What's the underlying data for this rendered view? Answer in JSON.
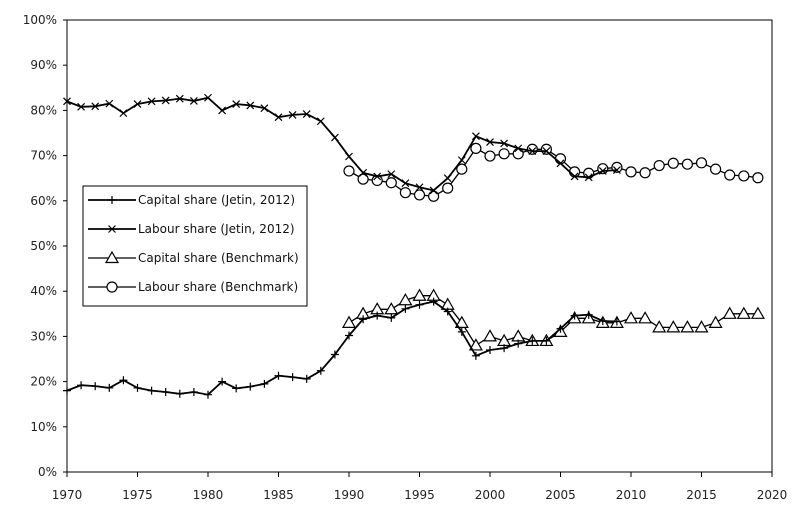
{
  "chart_data": {
    "type": "line",
    "xlim": [
      1970,
      2020
    ],
    "ylim": [
      0,
      100
    ],
    "x_ticks": [
      "1970",
      "1975",
      "1980",
      "1985",
      "1990",
      "1995",
      "2000",
      "2005",
      "2010",
      "2015",
      "2020"
    ],
    "y_ticks": [
      "0%",
      "10%",
      "20%",
      "30%",
      "40%",
      "50%",
      "60%",
      "70%",
      "80%",
      "90%",
      "100%"
    ],
    "grid": false,
    "legend_position": "left-middle",
    "series": [
      {
        "name": "Capital share (Jetin, 2012)",
        "marker": "plus",
        "x": [
          1970,
          1971,
          1972,
          1973,
          1974,
          1975,
          1976,
          1977,
          1978,
          1979,
          1980,
          1981,
          1982,
          1983,
          1984,
          1985,
          1986,
          1987,
          1988,
          1989,
          1990,
          1991,
          1992,
          1993,
          1994,
          1995,
          1996,
          1997,
          1998,
          1999,
          2000,
          2001,
          2002,
          2003,
          2004,
          2005,
          2006,
          2007,
          2008,
          2009
        ],
        "y": [
          18,
          19.2,
          19,
          18.6,
          20.3,
          18.6,
          18,
          17.7,
          17.3,
          17.7,
          17.1,
          20,
          18.5,
          18.9,
          19.5,
          21.3,
          21,
          20.6,
          22.4,
          26,
          30.2,
          33.8,
          34.6,
          34.1,
          36.1,
          37,
          37.7,
          35.5,
          31,
          25.7,
          27,
          27.4,
          28.4,
          29,
          29,
          31.7,
          34.6,
          34.8,
          33.4,
          33.3
        ]
      },
      {
        "name": "Labour share (Jetin, 2012)",
        "marker": "cross",
        "x": [
          1970,
          1971,
          1972,
          1973,
          1974,
          1975,
          1976,
          1977,
          1978,
          1979,
          1980,
          1981,
          1982,
          1983,
          1984,
          1985,
          1986,
          1987,
          1988,
          1989,
          1990,
          1991,
          1992,
          1993,
          1994,
          1995,
          1996,
          1997,
          1998,
          1999,
          2000,
          2001,
          2002,
          2003,
          2004,
          2005,
          2006,
          2007,
          2008,
          2009
        ],
        "y": [
          82,
          80.8,
          80.9,
          81.5,
          79.4,
          81.4,
          82,
          82.2,
          82.6,
          82.1,
          82.8,
          80,
          81.4,
          81.1,
          80.5,
          78.5,
          79,
          79.2,
          77.6,
          74,
          69.8,
          66.2,
          65.4,
          65.9,
          63.9,
          63,
          62.3,
          65,
          69,
          74.3,
          73,
          72.7,
          71.6,
          71,
          71,
          68.3,
          65.4,
          65.2,
          66.6,
          66.8
        ]
      },
      {
        "name": "Capital share (Benchmark)",
        "marker": "triangle",
        "x": [
          1990,
          1991,
          1992,
          1993,
          1994,
          1995,
          1996,
          1997,
          1998,
          1999,
          2000,
          2001,
          2002,
          2003,
          2004,
          2005,
          2006,
          2007,
          2008,
          2009,
          2010,
          2011,
          2012,
          2013,
          2014,
          2015,
          2016,
          2017,
          2018,
          2019
        ],
        "y": [
          33,
          35,
          36,
          36,
          38,
          39,
          39,
          37,
          33,
          28,
          30,
          29,
          30,
          29,
          29,
          31,
          34,
          34,
          33,
          33,
          34,
          34,
          32,
          32,
          32,
          32,
          33,
          35,
          35,
          35
        ]
      },
      {
        "name": "Labour share (Benchmark)",
        "marker": "circle",
        "x": [
          1990,
          1991,
          1992,
          1993,
          1994,
          1995,
          1996,
          1997,
          1998,
          1999,
          2000,
          2001,
          2002,
          2003,
          2004,
          2005,
          2006,
          2007,
          2008,
          2009,
          2010,
          2011,
          2012,
          2013,
          2014,
          2015,
          2016,
          2017,
          2018,
          2019
        ],
        "y": [
          66.6,
          64.8,
          64.5,
          64,
          61.8,
          61.3,
          61,
          62.8,
          67,
          71.6,
          69.9,
          70.4,
          70.4,
          71.4,
          71.4,
          69.3,
          66.4,
          66.1,
          67.1,
          67.4,
          66.4,
          66.2,
          67.8,
          68.3,
          68.1,
          68.4,
          67,
          65.7,
          65.5,
          65.1
        ]
      }
    ]
  }
}
